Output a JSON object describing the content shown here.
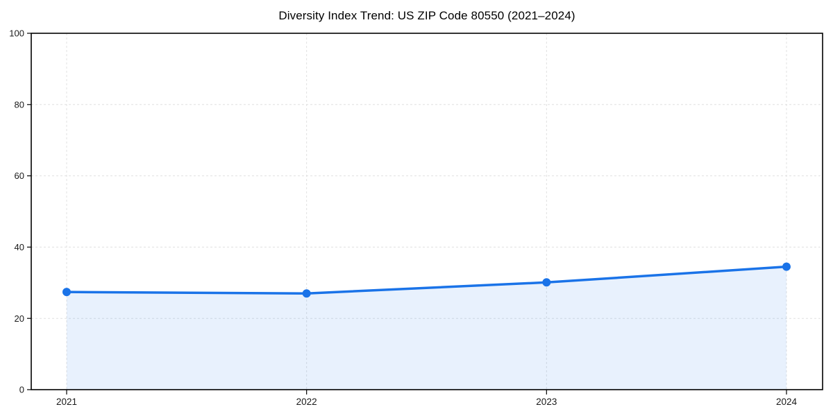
{
  "chart_data": {
    "type": "area",
    "title": "Diversity Index Trend: US ZIP Code 80550 (2021–2024)",
    "categories": [
      "2021",
      "2022",
      "2023",
      "2024"
    ],
    "values": [
      27.4,
      27.0,
      30.1,
      34.5
    ],
    "series": [
      {
        "name": "Diversity Index",
        "values": [
          27.4,
          27.0,
          30.1,
          34.5
        ]
      }
    ],
    "xlabel": "",
    "ylabel": "",
    "ylim": [
      0,
      100
    ],
    "yticks": [
      0,
      20,
      40,
      60,
      80,
      100
    ],
    "grid": "dashed-both-axes",
    "legend": "none",
    "frame": "full-box",
    "colors": {
      "line": "#1a73e8",
      "marker": "#1a73e8",
      "fill": "rgba(26,115,232,0.10)",
      "grid": "#e0e0e0",
      "spine": "#000000",
      "tick_text": "#1a1a1a",
      "title_text": "#000000",
      "background": "#ffffff"
    }
  }
}
